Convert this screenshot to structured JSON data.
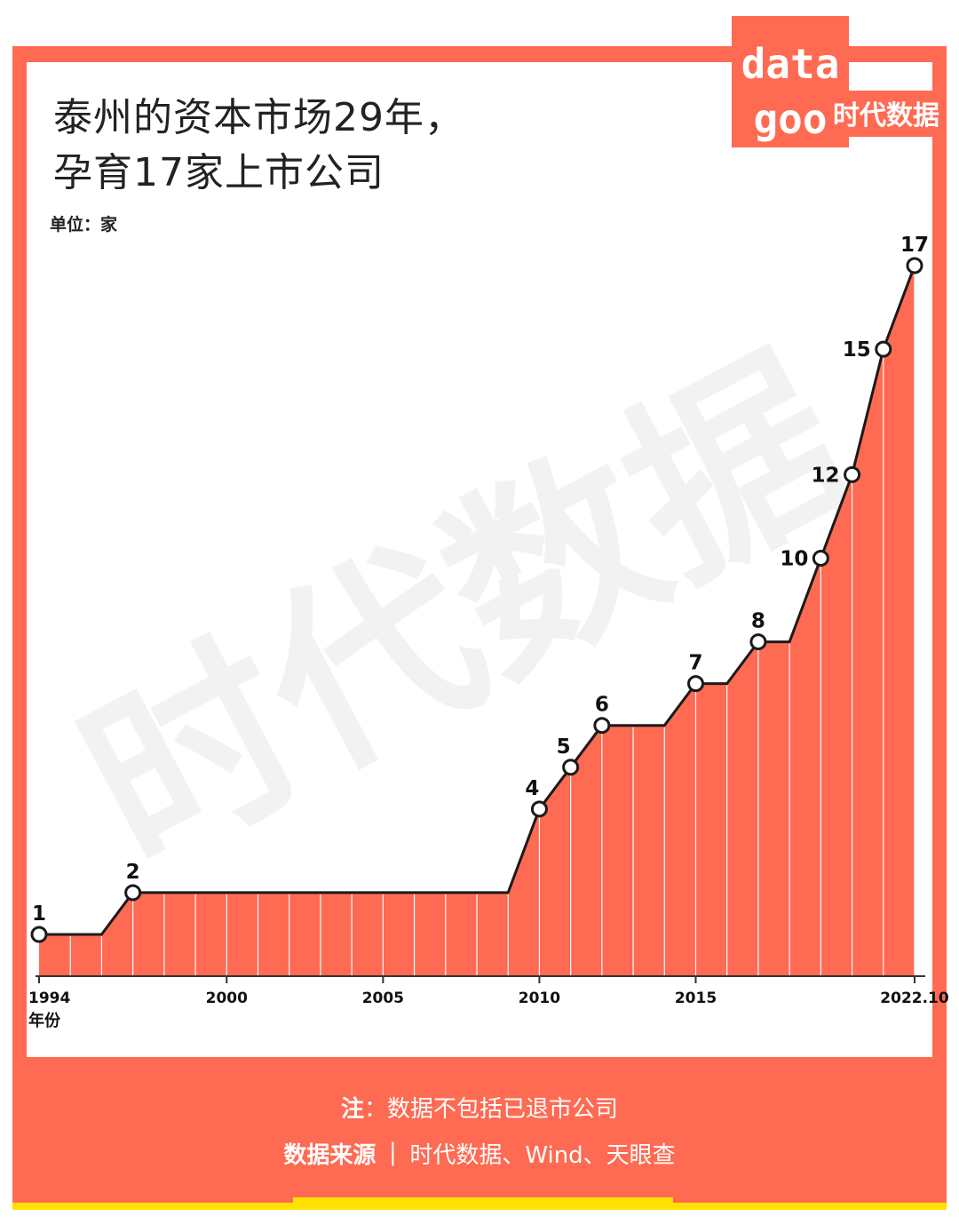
{
  "header": {
    "title_line1": "泰州的资本市场29年，",
    "title_line2": "孕育17家上市公司",
    "unit": "单位：家"
  },
  "logo": {
    "word": "data",
    "brand": "时代数据"
  },
  "watermark": {
    "text": "时代数据"
  },
  "colors": {
    "accent": "#ff6a52",
    "line": "#1a1a1a",
    "highlight": "#ffe100"
  },
  "chart_data": {
    "type": "area",
    "x_label": "年份",
    "x_ticks": [
      {
        "x": 1994,
        "label": "1994"
      },
      {
        "x": 2000,
        "label": "2000"
      },
      {
        "x": 2005,
        "label": "2005"
      },
      {
        "x": 2010,
        "label": "2010"
      },
      {
        "x": 2015,
        "label": "2015"
      },
      {
        "x": 2022.83,
        "label": "2022.10"
      }
    ],
    "xlim": [
      1994,
      2022.83
    ],
    "ylim": [
      0,
      17
    ],
    "grid_years": [
      1995,
      1996,
      1997,
      1998,
      1999,
      2000,
      2001,
      2002,
      2003,
      2004,
      2005,
      2006,
      2007,
      2008,
      2009,
      2010,
      2011,
      2012,
      2013,
      2014,
      2015,
      2016,
      2017,
      2018,
      2019,
      2020,
      2021,
      2022
    ],
    "points": [
      {
        "x": 1994,
        "y": 1
      },
      {
        "x": 1996,
        "y": 1
      },
      {
        "x": 1997,
        "y": 2
      },
      {
        "x": 2009,
        "y": 2
      },
      {
        "x": 2010,
        "y": 4
      },
      {
        "x": 2011,
        "y": 5
      },
      {
        "x": 2012,
        "y": 6
      },
      {
        "x": 2014,
        "y": 6
      },
      {
        "x": 2015,
        "y": 7
      },
      {
        "x": 2016,
        "y": 7
      },
      {
        "x": 2017,
        "y": 8
      },
      {
        "x": 2018,
        "y": 8
      },
      {
        "x": 2019,
        "y": 10
      },
      {
        "x": 2020,
        "y": 12
      },
      {
        "x": 2021,
        "y": 15
      },
      {
        "x": 2022,
        "y": 17
      }
    ],
    "markers": [
      {
        "x": 1994,
        "y": 1,
        "label": "1",
        "pos": "above"
      },
      {
        "x": 1997,
        "y": 2,
        "label": "2",
        "pos": "above"
      },
      {
        "x": 2010,
        "y": 4,
        "label": "4",
        "pos": "above-left"
      },
      {
        "x": 2011,
        "y": 5,
        "label": "5",
        "pos": "above-left"
      },
      {
        "x": 2012,
        "y": 6,
        "label": "6",
        "pos": "above"
      },
      {
        "x": 2015,
        "y": 7,
        "label": "7",
        "pos": "above"
      },
      {
        "x": 2017,
        "y": 8,
        "label": "8",
        "pos": "above"
      },
      {
        "x": 2019,
        "y": 10,
        "label": "10",
        "pos": "left"
      },
      {
        "x": 2020,
        "y": 12,
        "label": "12",
        "pos": "left"
      },
      {
        "x": 2021,
        "y": 15,
        "label": "15",
        "pos": "left"
      },
      {
        "x": 2022,
        "y": 17,
        "label": "17",
        "pos": "above"
      }
    ]
  },
  "footer": {
    "note_label": "注",
    "note_sep": "：",
    "note_text": "数据不包括已退市公司",
    "source_label": "数据来源",
    "source_sep": "｜",
    "source_text": "时代数据、Wind、天眼查"
  }
}
